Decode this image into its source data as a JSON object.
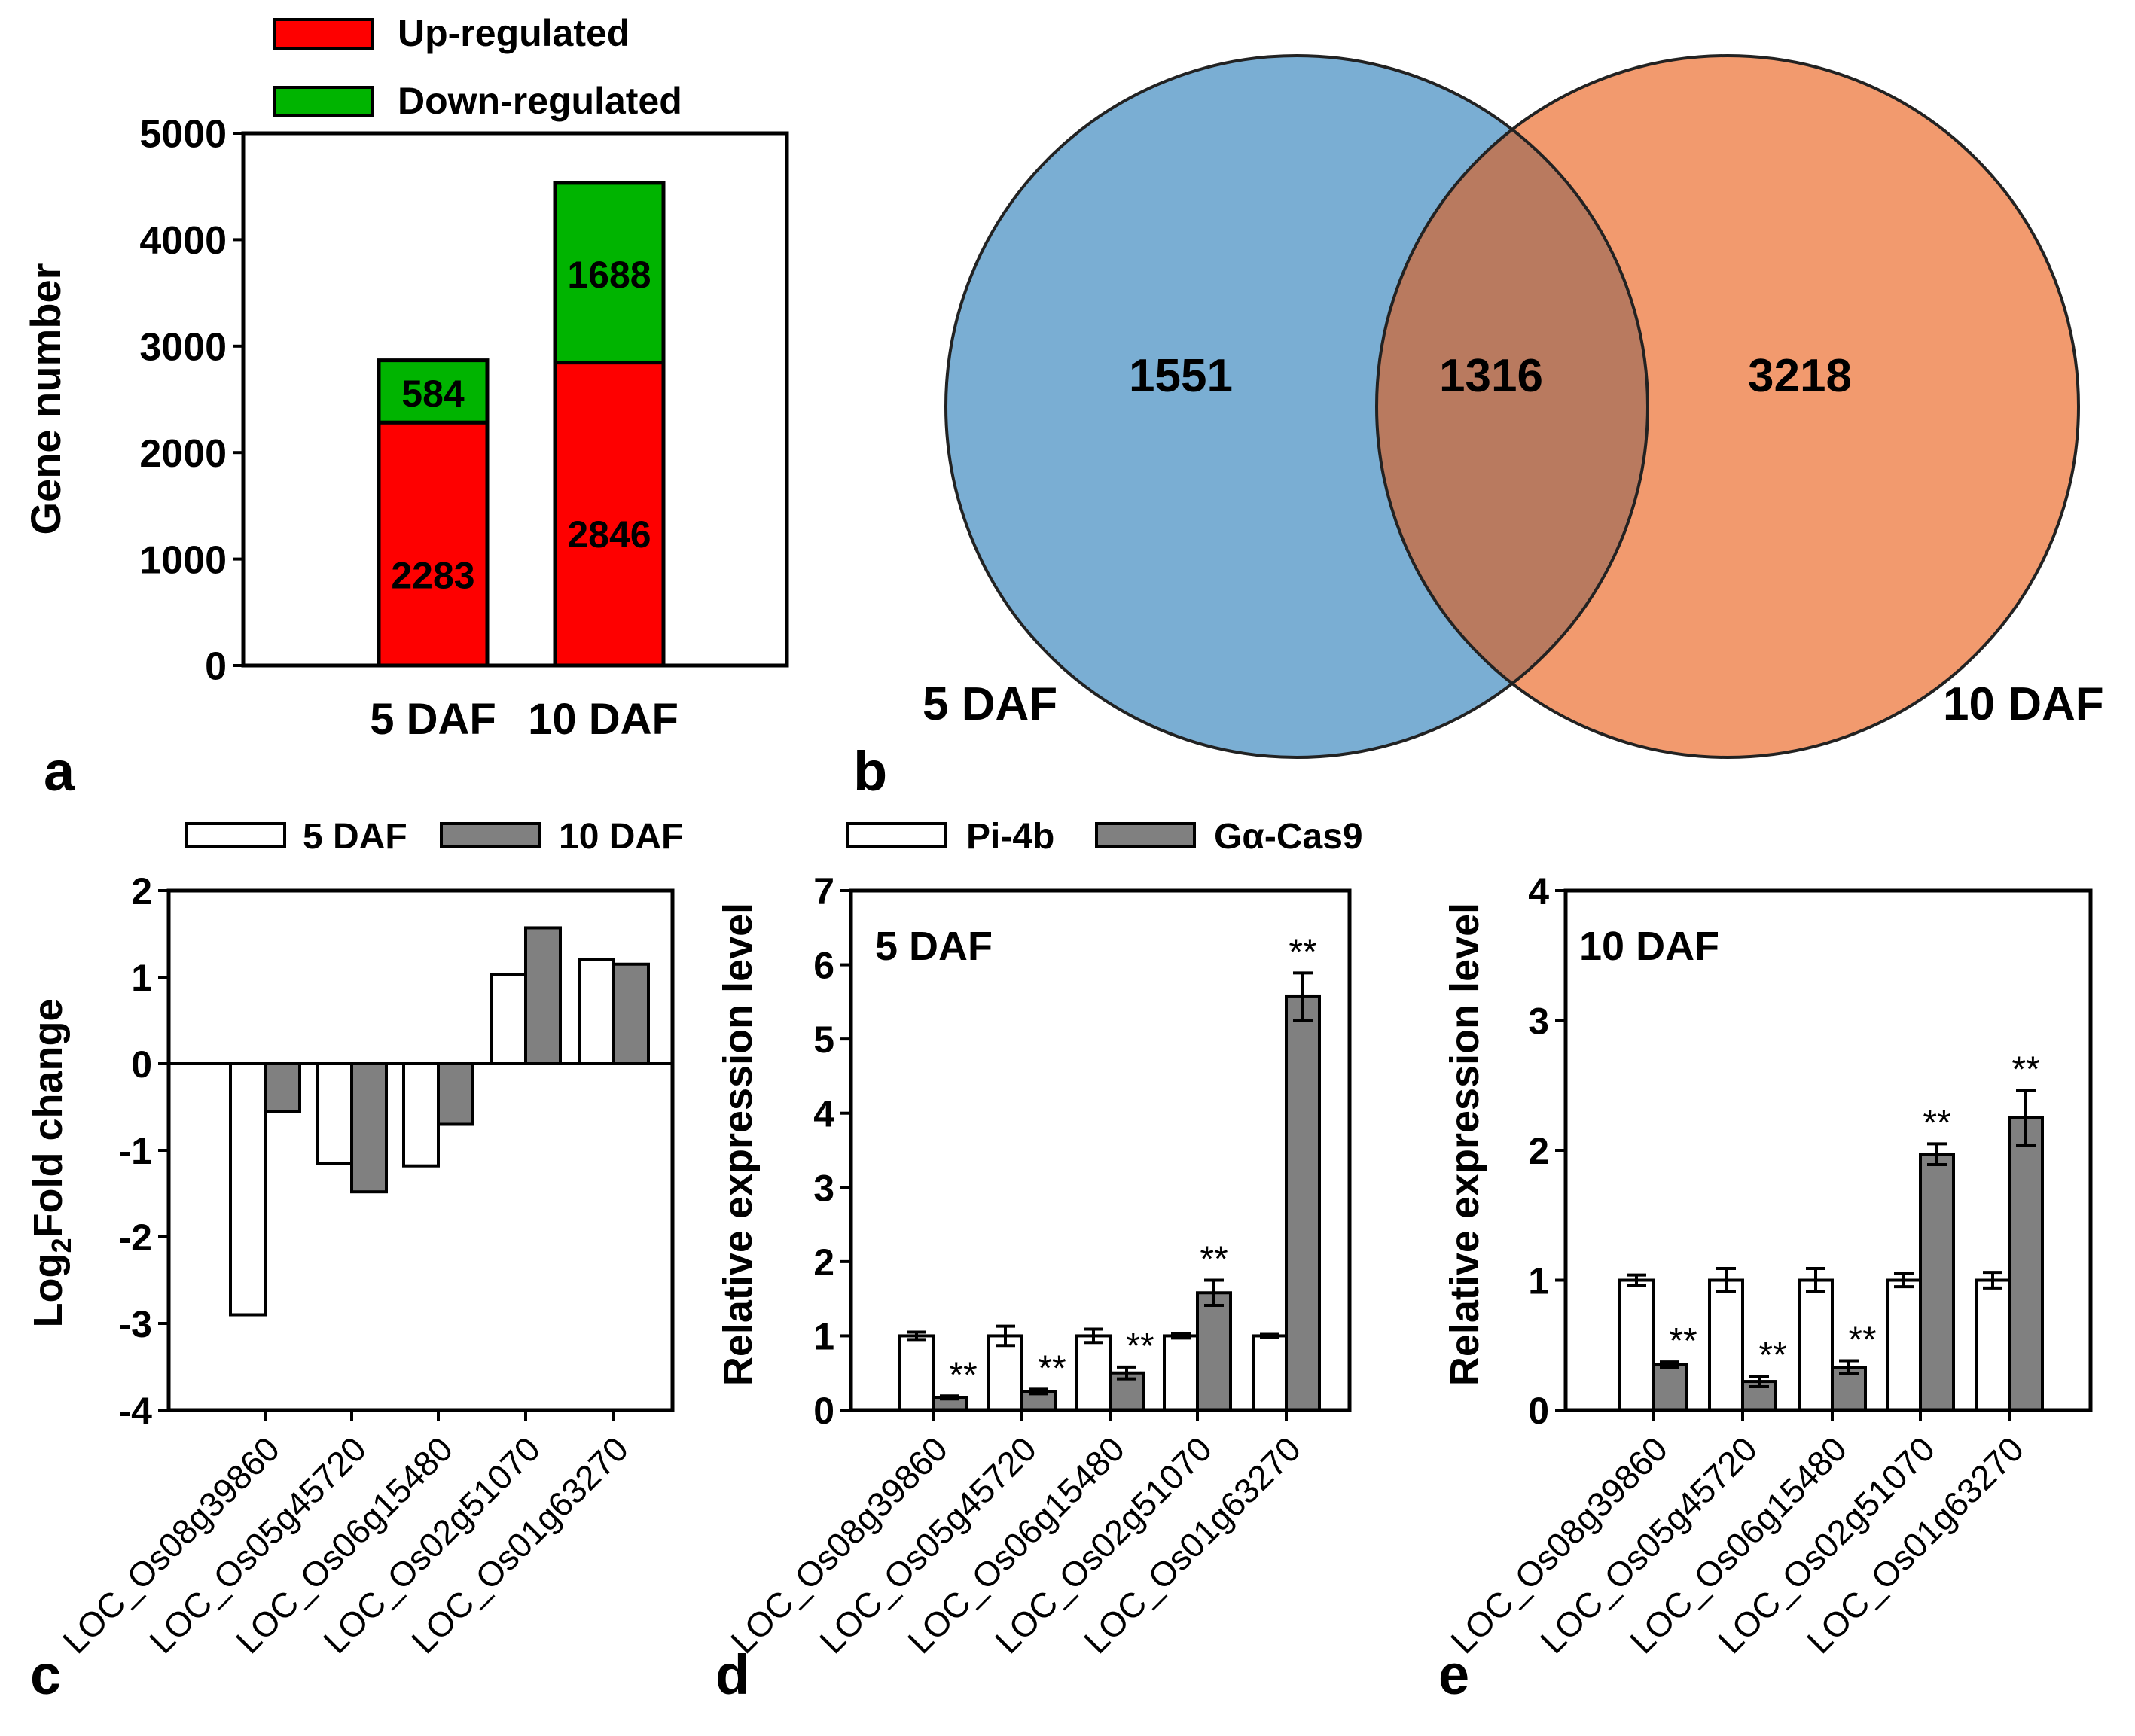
{
  "panel_labels": {
    "a": "a",
    "b": "b",
    "c": "c",
    "d": "d",
    "e": "e"
  },
  "colors": {
    "up": "#fe0000",
    "down": "#00b400",
    "venn_left": "#7aaed3",
    "venn_right": "#f29a6e",
    "venn_overlap": "#b97a5f",
    "white_bar": "#ffffff",
    "gray_bar": "#808080"
  },
  "chart_data": [
    {
      "id": "a",
      "type": "bar",
      "stacked": true,
      "categories": [
        "5 DAF",
        "10 DAF"
      ],
      "series": [
        {
          "name": "Up-regulated",
          "values": [
            2283,
            2846
          ],
          "labels": [
            "2283",
            "2846"
          ]
        },
        {
          "name": "Down-regulated",
          "values": [
            584,
            1688
          ],
          "labels": [
            "584",
            "1688"
          ]
        }
      ],
      "ylabel": "Gene number",
      "ylim": [
        0,
        5000
      ],
      "yticks": [
        0,
        1000,
        2000,
        3000,
        4000,
        5000
      ],
      "ytick_labels": [
        "0",
        "1000",
        "2000",
        "3000",
        "4000",
        "5000"
      ],
      "legend": "top"
    },
    {
      "id": "b",
      "type": "venn",
      "sets": [
        {
          "name": "5 DAF",
          "only": "1551"
        },
        {
          "name": "10 DAF",
          "only": "3218"
        }
      ],
      "overlap": "1316"
    },
    {
      "id": "c",
      "type": "bar",
      "categories": [
        "LOC_Os08g39860",
        "LOC_Os05g45720",
        "LOC_Os06g15480",
        "LOC_Os02g51070",
        "LOC_Os01g63270"
      ],
      "series": [
        {
          "name": "5 DAF",
          "values": [
            -2.9,
            -1.15,
            -1.18,
            1.03,
            1.2
          ]
        },
        {
          "name": "10 DAF",
          "values": [
            -0.55,
            -1.48,
            -0.7,
            1.57,
            1.15
          ]
        }
      ],
      "ylabel_main": "Log",
      "ylabel_sub": "2",
      "ylabel_rest": "Fold change",
      "ylim": [
        -4,
        2
      ],
      "yticks": [
        -4,
        -3,
        -2,
        -1,
        0,
        1,
        2
      ],
      "ytick_labels": [
        "-4",
        "-3",
        "-2",
        "-1",
        "0",
        "1",
        "2"
      ],
      "legend": "top"
    },
    {
      "id": "d",
      "type": "bar",
      "annotation": "5 DAF",
      "categories": [
        "LOC_Os08g39860",
        "LOC_Os05g45720",
        "LOC_Os06g15480",
        "LOC_Os02g51070",
        "LOC_Os01g63270"
      ],
      "series": [
        {
          "name": "Pi-4b",
          "values": [
            1.0,
            1.0,
            1.0,
            1.0,
            1.0
          ],
          "errors": [
            0.05,
            0.13,
            0.09,
            0.03,
            0.02
          ]
        },
        {
          "name": "Gα-Cas9",
          "values": [
            0.17,
            0.25,
            0.5,
            1.58,
            5.57
          ],
          "errors": [
            0.02,
            0.03,
            0.08,
            0.17,
            0.32
          ]
        }
      ],
      "significance": [
        "**",
        "**",
        "**",
        "**",
        "**"
      ],
      "ylabel": "Relative expression level",
      "ylim": [
        0,
        7
      ],
      "yticks": [
        0,
        1,
        2,
        3,
        4,
        5,
        6,
        7
      ],
      "ytick_labels": [
        "0",
        "1",
        "2",
        "3",
        "4",
        "5",
        "6",
        "7"
      ],
      "legend": "top"
    },
    {
      "id": "e",
      "type": "bar",
      "annotation": "10 DAF",
      "categories": [
        "LOC_Os08g39860",
        "LOC_Os05g45720",
        "LOC_Os06g15480",
        "LOC_Os02g51070",
        "LOC_Os01g63270"
      ],
      "series": [
        {
          "name": "Pi-4b",
          "values": [
            1.0,
            1.0,
            1.0,
            1.0,
            1.0
          ],
          "errors": [
            0.04,
            0.09,
            0.09,
            0.05,
            0.06
          ]
        },
        {
          "name": "Gα-Cas9",
          "values": [
            0.35,
            0.22,
            0.33,
            1.97,
            2.25
          ],
          "errors": [
            0.02,
            0.04,
            0.05,
            0.08,
            0.21
          ]
        }
      ],
      "significance": [
        "**",
        "**",
        "**",
        "**",
        "**"
      ],
      "ylabel": "Relative expression level",
      "ylim": [
        0,
        4
      ],
      "yticks": [
        0,
        1,
        2,
        3,
        4
      ],
      "ytick_labels": [
        "0",
        "1",
        "2",
        "3",
        "4"
      ]
    }
  ]
}
